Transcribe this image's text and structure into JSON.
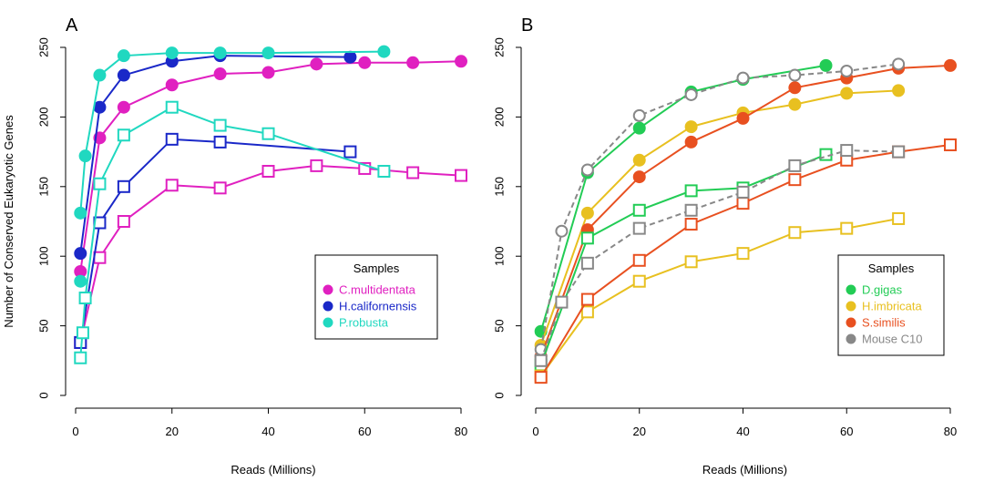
{
  "chart_data": [
    {
      "type": "line",
      "panel_label": "A",
      "xlabel": "Reads (Millions)",
      "ylabel": "Number of Conserved Eukaryotic Genes",
      "xlim": [
        0,
        80
      ],
      "ylim": [
        0,
        250
      ],
      "x_ticks": [
        0,
        20,
        40,
        60,
        80
      ],
      "y_ticks": [
        0,
        50,
        100,
        150,
        200,
        250
      ],
      "legend": {
        "title": "Samples",
        "position": "right"
      },
      "series": [
        {
          "name": "C.multidentata",
          "color": "#e020c0",
          "marker": "filled-circle",
          "dashed": false,
          "x": [
            1,
            5,
            10,
            20,
            30,
            40,
            50,
            60,
            70,
            80
          ],
          "y": [
            89,
            185,
            207,
            223,
            231,
            232,
            238,
            239,
            239,
            240
          ]
        },
        {
          "name": "H.californensis",
          "color": "#1a28c8",
          "marker": "filled-circle",
          "dashed": false,
          "x": [
            1,
            5,
            10,
            20,
            30,
            57
          ],
          "y": [
            102,
            207,
            230,
            240,
            244,
            243
          ]
        },
        {
          "name": "P.robusta",
          "color": "#20d8c0",
          "marker": "filled-circle",
          "dashed": false,
          "x": [
            1,
            2,
            5,
            10,
            20,
            30,
            40,
            64
          ],
          "y": [
            131,
            172,
            230,
            244,
            246,
            246,
            246,
            247
          ]
        },
        {
          "legend": false,
          "color": "#e020c0",
          "marker": "open-square",
          "dashed": false,
          "x": [
            1,
            5,
            10,
            20,
            30,
            40,
            50,
            60,
            70,
            80
          ],
          "y": [
            38,
            99,
            125,
            151,
            149,
            161,
            165,
            163,
            160,
            158
          ]
        },
        {
          "legend": false,
          "color": "#1a28c8",
          "marker": "open-square",
          "dashed": false,
          "x": [
            1,
            5,
            10,
            20,
            30,
            57
          ],
          "y": [
            38,
            124,
            150,
            184,
            182,
            175
          ]
        },
        {
          "legend": false,
          "color": "#20d8c0",
          "marker": "open-square",
          "dashed": false,
          "x": [
            1,
            2,
            5,
            10,
            20,
            30,
            40,
            64
          ],
          "y": [
            27,
            70,
            152,
            187,
            207,
            194,
            188,
            161
          ]
        },
        {
          "legend": false,
          "color": "#20d8c0",
          "marker": "filled-circle",
          "dashed": false,
          "points_only": true,
          "x": [
            1
          ],
          "y": [
            82
          ]
        },
        {
          "legend": false,
          "color": "#20d8c0",
          "marker": "open-square",
          "dashed": false,
          "points_only": true,
          "x": [
            1.5
          ],
          "y": [
            45
          ]
        }
      ]
    },
    {
      "type": "line",
      "panel_label": "B",
      "xlabel": "Reads (Millions)",
      "ylabel": "",
      "xlim": [
        0,
        80
      ],
      "ylim": [
        0,
        250
      ],
      "x_ticks": [
        0,
        20,
        40,
        60,
        80
      ],
      "y_ticks": [
        0,
        50,
        100,
        150,
        200,
        250
      ],
      "legend": {
        "title": "Samples",
        "position": "right"
      },
      "series": [
        {
          "name": "D.gigas",
          "color": "#22cc55",
          "marker": "filled-circle",
          "dashed": false,
          "x": [
            1,
            10,
            20,
            30,
            40,
            56
          ],
          "y": [
            46,
            160,
            192,
            218,
            227,
            237
          ]
        },
        {
          "name": "H.imbricata",
          "color": "#e8c020",
          "marker": "filled-circle",
          "dashed": false,
          "x": [
            1,
            10,
            20,
            30,
            40,
            50,
            60,
            70
          ],
          "y": [
            36,
            131,
            169,
            193,
            203,
            209,
            217,
            219
          ]
        },
        {
          "name": "S.similis",
          "color": "#e85020",
          "marker": "filled-circle",
          "dashed": false,
          "x": [
            1,
            10,
            20,
            30,
            40,
            50,
            60,
            70,
            80
          ],
          "y": [
            28,
            119,
            157,
            182,
            199,
            221,
            228,
            235,
            237
          ]
        },
        {
          "name": "Mouse C10",
          "color": "#888888",
          "marker": "open-circle",
          "dashed": true,
          "x": [
            1,
            5,
            10,
            20,
            30,
            40,
            50,
            60,
            70
          ],
          "y": [
            33,
            118,
            162,
            201,
            216,
            228,
            230,
            233,
            238
          ]
        },
        {
          "legend": false,
          "color": "#22cc55",
          "marker": "open-square",
          "dashed": false,
          "x": [
            1,
            10,
            20,
            30,
            40,
            56
          ],
          "y": [
            22,
            113,
            133,
            147,
            149,
            173
          ]
        },
        {
          "legend": false,
          "color": "#e8c020",
          "marker": "open-square",
          "dashed": false,
          "x": [
            1,
            10,
            20,
            30,
            40,
            50,
            60,
            70
          ],
          "y": [
            14,
            60,
            82,
            96,
            102,
            117,
            120,
            127
          ]
        },
        {
          "legend": false,
          "color": "#e85020",
          "marker": "open-square",
          "dashed": false,
          "x": [
            1,
            10,
            20,
            30,
            40,
            50,
            60,
            70,
            80
          ],
          "y": [
            13,
            69,
            97,
            123,
            138,
            155,
            169,
            175,
            180
          ]
        },
        {
          "legend": false,
          "color": "#888888",
          "marker": "open-square",
          "dashed": true,
          "x": [
            1,
            5,
            10,
            20,
            30,
            40,
            50,
            60,
            70
          ],
          "y": [
            25,
            67,
            95,
            120,
            133,
            146,
            165,
            176,
            175
          ]
        }
      ]
    }
  ]
}
